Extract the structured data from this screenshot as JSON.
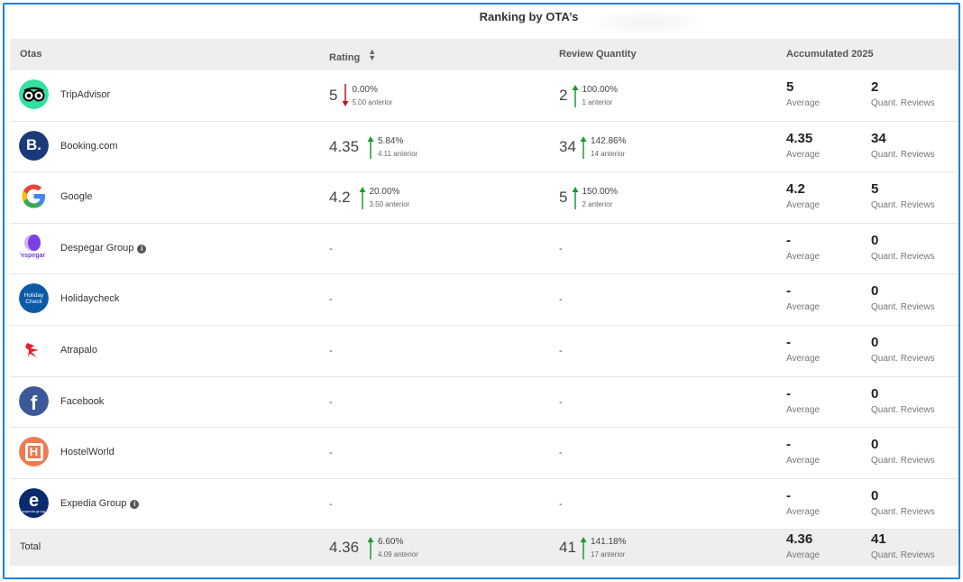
{
  "title": "Ranking by OTA’s",
  "headers": {
    "otas": "Otas",
    "rating": "Rating",
    "review_quantity": "Review Quantity",
    "accumulated": "Accumulated 2025"
  },
  "labels": {
    "average": "Average",
    "quant_reviews": "Quant. Reviews",
    "dash": "-"
  },
  "colors": {
    "up": "#1a9c2e",
    "down": "#c01818",
    "frame": "#1a7fe0"
  },
  "rows": [
    {
      "name": "TripAdvisor",
      "icon": "tripadvisor-owl-icon",
      "info": false,
      "rating": {
        "value": "5",
        "dir": "down",
        "pct": "0.00%",
        "prev": "5.00 anterior"
      },
      "reviews": {
        "value": "2",
        "dir": "up",
        "pct": "100.00%",
        "prev": "1 anterior"
      },
      "acc_avg": "5",
      "acc_qty": "2"
    },
    {
      "name": "Booking.com",
      "icon": "booking-b-icon",
      "info": false,
      "rating": {
        "value": "4.35",
        "dir": "up",
        "pct": "5.84%",
        "prev": "4.11 anterior"
      },
      "reviews": {
        "value": "34",
        "dir": "up",
        "pct": "142.86%",
        "prev": "14 anterior"
      },
      "acc_avg": "4.35",
      "acc_qty": "34"
    },
    {
      "name": "Google",
      "icon": "google-g-icon",
      "info": false,
      "rating": {
        "value": "4.2",
        "dir": "up",
        "pct": "20.00%",
        "prev": "3.50 anterior"
      },
      "reviews": {
        "value": "5",
        "dir": "up",
        "pct": "150.00%",
        "prev": "2 anterior"
      },
      "acc_avg": "4.2",
      "acc_qty": "5"
    },
    {
      "name": "Despegar Group",
      "icon": "despegar-icon",
      "info": true,
      "rating": null,
      "reviews": null,
      "acc_avg": "-",
      "acc_qty": "0"
    },
    {
      "name": "Holidaycheck",
      "icon": "holidaycheck-icon",
      "info": false,
      "rating": null,
      "reviews": null,
      "acc_avg": "-",
      "acc_qty": "0"
    },
    {
      "name": "Atrapalo",
      "icon": "atrapalo-icon",
      "info": false,
      "rating": null,
      "reviews": null,
      "acc_avg": "-",
      "acc_qty": "0"
    },
    {
      "name": "Facebook",
      "icon": "facebook-f-icon",
      "info": false,
      "rating": null,
      "reviews": null,
      "acc_avg": "-",
      "acc_qty": "0"
    },
    {
      "name": "HostelWorld",
      "icon": "hostelworld-h-icon",
      "info": false,
      "rating": null,
      "reviews": null,
      "acc_avg": "-",
      "acc_qty": "0"
    },
    {
      "name": "Expedia Group",
      "icon": "expedia-e-icon",
      "info": true,
      "rating": null,
      "reviews": null,
      "acc_avg": "-",
      "acc_qty": "0"
    }
  ],
  "total": {
    "name": "Total",
    "rating": {
      "value": "4.36",
      "dir": "up",
      "pct": "6.60%",
      "prev": "4.09 anterior"
    },
    "reviews": {
      "value": "41",
      "dir": "up",
      "pct": "141.18%",
      "prev": "17 anterior"
    },
    "acc_avg": "4.36",
    "acc_qty": "41"
  },
  "logo_text": {
    "booking": "B.",
    "holidaycheck": "Holiday Check",
    "despegar": "despegar",
    "expedia": "e",
    "expedia_sub": "expedia group",
    "facebook": "f",
    "hostelworld": "H"
  }
}
